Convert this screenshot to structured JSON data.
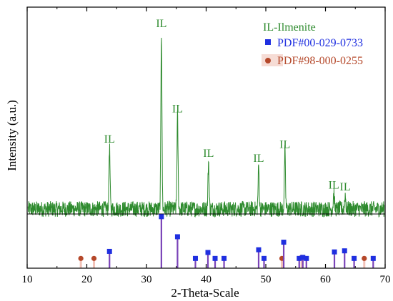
{
  "chart_data": {
    "type": "line",
    "title": "",
    "xlabel": "2-Theta-Scale",
    "ylabel": "Intensity (a.u.)",
    "xlim": [
      10,
      70
    ],
    "x_ticks": [
      10,
      20,
      30,
      40,
      50,
      60,
      70
    ],
    "x_tick_labels": [
      "10",
      "20",
      "30",
      "40",
      "50",
      "60",
      "70"
    ],
    "y_ticks": [],
    "grid": false,
    "legend_position": "top-right",
    "colors": {
      "pattern": "#2e8b2e",
      "label": "#2e8b2e",
      "ref_a": "#1f2fe0",
      "ref_b": "#b5482a",
      "stick_a": "#7a43b8",
      "stick_b": "#f2c2b8"
    },
    "legend": {
      "label_text": "IL-Ilmenite",
      "series_a": "PDF#00-029-0733",
      "series_b": "PDF#98-000-0255"
    },
    "pattern": {
      "baseline": 0.0,
      "noise": 4,
      "peaks": [
        {
          "x": 23.8,
          "intensity": 35,
          "label": "IL"
        },
        {
          "x": 32.5,
          "intensity": 100,
          "label": "IL"
        },
        {
          "x": 35.2,
          "intensity": 52,
          "label": "IL"
        },
        {
          "x": 40.4,
          "intensity": 27,
          "label": "IL"
        },
        {
          "x": 48.8,
          "intensity": 24,
          "label": "IL"
        },
        {
          "x": 53.2,
          "intensity": 32,
          "label": "IL"
        },
        {
          "x": 61.4,
          "intensity": 9,
          "label": "IL"
        },
        {
          "x": 63.3,
          "intensity": 8,
          "label": "IL"
        }
      ]
    },
    "reference_a": {
      "name": "PDF#00-029-0733",
      "x": [
        23.8,
        32.5,
        35.2,
        38.2,
        40.3,
        41.5,
        43.0,
        48.8,
        49.7,
        53.0,
        55.6,
        56.2,
        56.8,
        61.5,
        63.2,
        64.8,
        68.0
      ],
      "intensity": [
        31,
        95,
        58,
        18,
        29,
        18,
        18,
        34,
        18,
        48,
        18,
        20,
        18,
        30,
        32,
        18,
        18
      ]
    },
    "reference_b": {
      "name": "PDF#98-000-0255",
      "x": [
        19.0,
        21.2,
        52.7,
        56.0,
        66.5
      ],
      "intensity": [
        18,
        18,
        18,
        20,
        18
      ]
    }
  }
}
